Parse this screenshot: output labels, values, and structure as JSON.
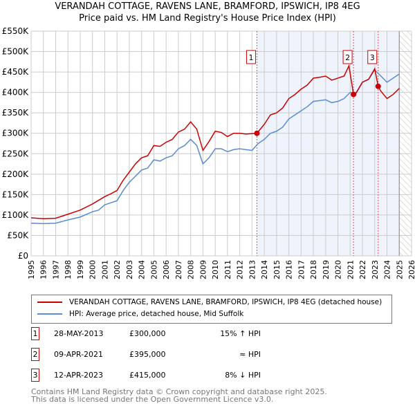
{
  "chart_data": {
    "type": "line",
    "title": "VERANDAH COTTAGE, RAVENS LANE, BRAMFORD, IPSWICH, IP8 4EG",
    "subtitle": "Price paid vs. HM Land Registry's House Price Index (HPI)",
    "xlim": [
      1995,
      2026
    ],
    "ylim": [
      0,
      550000
    ],
    "yticks": [
      0,
      50000,
      100000,
      150000,
      200000,
      250000,
      300000,
      350000,
      400000,
      450000,
      500000,
      550000
    ],
    "ytick_labels": [
      "£0",
      "£50K",
      "£100K",
      "£150K",
      "£200K",
      "£250K",
      "£300K",
      "£350K",
      "£400K",
      "£450K",
      "£500K",
      "£550K"
    ],
    "xticks": [
      1995,
      1996,
      1997,
      1998,
      1999,
      2000,
      2001,
      2002,
      2003,
      2004,
      2005,
      2006,
      2007,
      2008,
      2009,
      2010,
      2011,
      2012,
      2013,
      2014,
      2015,
      2016,
      2017,
      2018,
      2019,
      2020,
      2021,
      2022,
      2023,
      2024,
      2025,
      2026
    ],
    "grid": true,
    "shaded_range": [
      2013.4,
      2025.0
    ],
    "hatched_from": 2025.0,
    "colors": {
      "property": "#cc0000",
      "hpi": "#5b8bd0",
      "shade": "#eef3fc",
      "marker_line": "#e05050"
    },
    "series": [
      {
        "name": "VERANDAH COTTAGE, RAVENS LANE, BRAMFORD, IPSWICH, IP8 4EG (detached house)",
        "color": "#cc0000",
        "x": [
          1995,
          1996,
          1997,
          1998,
          1999,
          2000,
          2001,
          2001.5,
          2002,
          2002.5,
          2003,
          2003.5,
          2004,
          2004.5,
          2005,
          2005.5,
          2006,
          2006.5,
          2007,
          2007.5,
          2008,
          2008.5,
          2009,
          2009.5,
          2010,
          2010.5,
          2011,
          2011.5,
          2012,
          2012.5,
          2013.4,
          2014,
          2014.5,
          2015,
          2015.5,
          2016,
          2016.5,
          2017,
          2017.5,
          2018,
          2018.5,
          2019,
          2019.5,
          2020,
          2020.5,
          2020.9,
          2021.27,
          2021.5,
          2022,
          2022.5,
          2023,
          2023.28,
          2023.5,
          2024,
          2024.5,
          2025
        ],
        "y": [
          93000,
          91000,
          92000,
          102000,
          112000,
          127000,
          145000,
          152000,
          160000,
          185000,
          205000,
          225000,
          240000,
          245000,
          270000,
          268000,
          278000,
          285000,
          303000,
          310000,
          328000,
          310000,
          258000,
          280000,
          305000,
          302000,
          292000,
          300000,
          300000,
          298000,
          300000,
          322000,
          345000,
          350000,
          362000,
          385000,
          395000,
          408000,
          418000,
          435000,
          437000,
          440000,
          430000,
          435000,
          440000,
          465000,
          395000,
          400000,
          425000,
          432000,
          458000,
          415000,
          403000,
          385000,
          395000,
          410000
        ]
      },
      {
        "name": "HPI: Average price, detached house, Mid Suffolk",
        "color": "#5b8bd0",
        "x": [
          1995,
          1996,
          1997,
          1997.5,
          1998,
          1999,
          2000,
          2000.5,
          2001,
          2002,
          2002.5,
          2003,
          2003.5,
          2004,
          2004.5,
          2005,
          2005.5,
          2006,
          2006.5,
          2007,
          2007.5,
          2008,
          2008.5,
          2009,
          2009.5,
          2010,
          2010.5,
          2011,
          2011.5,
          2012,
          2012.5,
          2013,
          2013.5,
          2014,
          2014.5,
          2015,
          2015.5,
          2016,
          2016.5,
          2017,
          2017.5,
          2018,
          2018.5,
          2019,
          2019.5,
          2020,
          2020.5,
          2021,
          2021.5,
          2022,
          2022.5,
          2023,
          2023.5,
          2024,
          2024.5,
          2025
        ],
        "y": [
          80000,
          79000,
          80000,
          84000,
          88000,
          95000,
          108000,
          112000,
          125000,
          135000,
          160000,
          180000,
          195000,
          210000,
          215000,
          235000,
          232000,
          240000,
          245000,
          262000,
          270000,
          285000,
          270000,
          225000,
          240000,
          262000,
          262000,
          255000,
          260000,
          262000,
          260000,
          258000,
          275000,
          285000,
          300000,
          305000,
          315000,
          335000,
          345000,
          355000,
          365000,
          378000,
          380000,
          382000,
          375000,
          378000,
          385000,
          400000,
          398000,
          425000,
          432000,
          455000,
          440000,
          425000,
          435000,
          445000
        ]
      }
    ],
    "sales": [
      {
        "id": "1",
        "date": "28-MAY-2013",
        "price": "£300,000",
        "hpi": "15% ↑ HPI",
        "x": 2013.4,
        "y": 300000
      },
      {
        "id": "2",
        "date": "09-APR-2021",
        "price": "£395,000",
        "hpi": "≈ HPI",
        "x": 2021.27,
        "y": 395000
      },
      {
        "id": "3",
        "date": "12-APR-2023",
        "price": "£415,000",
        "hpi": "8% ↓ HPI",
        "x": 2023.28,
        "y": 415000
      }
    ]
  },
  "footer": {
    "line1": "Contains HM Land Registry data © Crown copyright and database right 2025.",
    "line2": "This data is licensed under the Open Government Licence v3.0."
  }
}
